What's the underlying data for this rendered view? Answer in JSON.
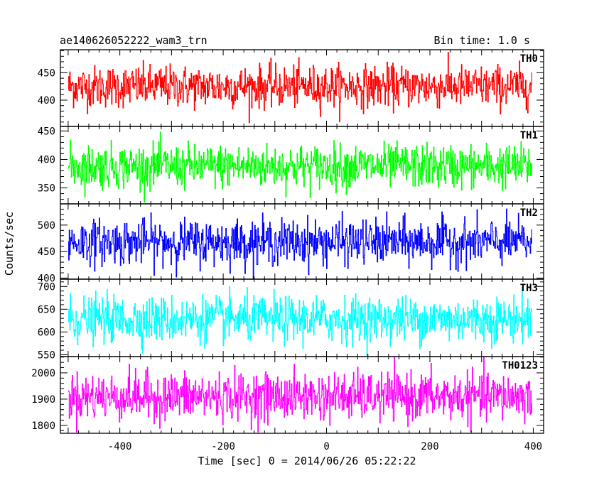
{
  "header": {
    "title": "ae140626052222_wam3_trn",
    "bin_time": "Bin time: 1.0 s"
  },
  "chart_data": {
    "type": "line",
    "title": "ae140626052222_wam3_trn",
    "subtitle": "Bin time: 1.0 s",
    "xlabel": "Time [sec] 0 = 2014/06/26 05:22:22",
    "ylabel": "Counts/sec",
    "xlim": [
      -515,
      420
    ],
    "x_ticks": [
      -400,
      -200,
      0,
      200,
      400
    ],
    "x_start": -500,
    "x_end": 397,
    "bin_seconds": 1.0,
    "grid": false,
    "panels": [
      {
        "name": "TH0",
        "color": "#ff0000",
        "ylim": [
          352,
          492
        ],
        "y_ticks": [
          400,
          450
        ],
        "mean": 425,
        "noise_sd": 19,
        "y_min": 358,
        "y_max": 492
      },
      {
        "name": "TH1",
        "color": "#00ff00",
        "ylim": [
          322,
          458
        ],
        "y_ticks": [
          350,
          400,
          450
        ],
        "mean": 388,
        "noise_sd": 19,
        "y_min": 325,
        "y_max": 458
      },
      {
        "name": "TH2",
        "color": "#0000ff",
        "ylim": [
          398,
          540
        ],
        "y_ticks": [
          400,
          450,
          500
        ],
        "mean": 468,
        "noise_sd": 21,
        "y_min": 398,
        "y_max": 540
      },
      {
        "name": "TH3",
        "color": "#00ffff",
        "ylim": [
          546,
          716
        ],
        "y_ticks": [
          550,
          600,
          650,
          700
        ],
        "mean": 628,
        "noise_sd": 25,
        "y_min": 548,
        "y_max": 716
      },
      {
        "name": "TH0123",
        "color": "#ff00ff",
        "ylim": [
          1770,
          2062
        ],
        "y_ticks": [
          1800,
          1900,
          2000
        ],
        "mean": 1910,
        "noise_sd": 45,
        "y_min": 1775,
        "y_max": 2062
      }
    ]
  }
}
